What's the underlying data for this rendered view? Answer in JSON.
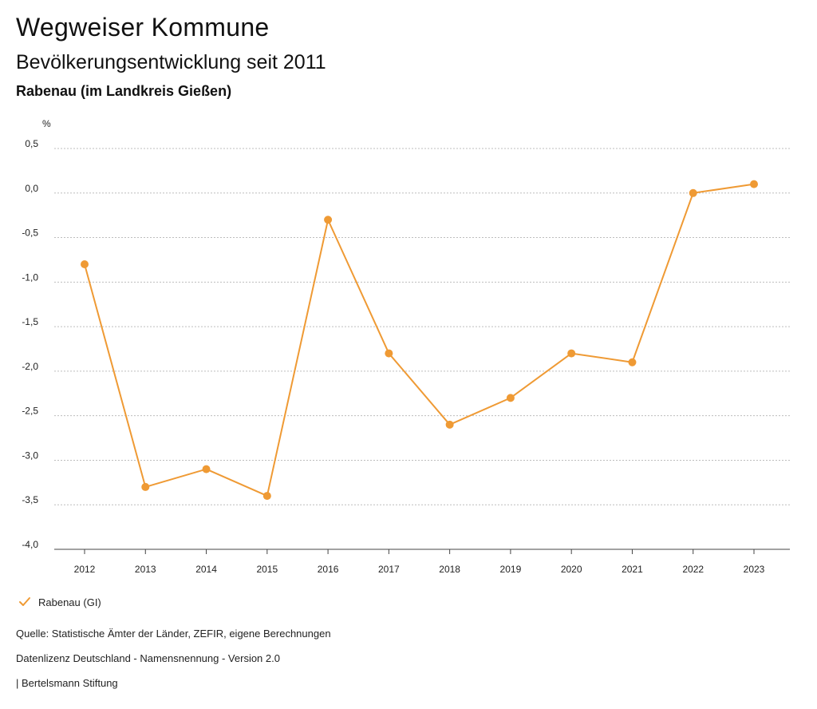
{
  "header": {
    "title": "Wegweiser Kommune",
    "subtitle": "Bevölkerungsentwicklung seit 2011",
    "region": "Rabenau (im Landkreis Gießen)"
  },
  "colors": {
    "series": "#ef9a34",
    "grid": "#bdbdbd",
    "axis": "#222222"
  },
  "chart_data": {
    "type": "line",
    "title": "Bevölkerungsentwicklung seit 2011",
    "ylabel": "%",
    "xlabel": "",
    "ylim": [
      -4.0,
      0.5
    ],
    "yticks": [
      0.5,
      0.0,
      -0.5,
      -1.0,
      -1.5,
      -2.0,
      -2.5,
      -3.0,
      -3.5,
      -4.0
    ],
    "ytick_labels": [
      "0,5",
      "0,0",
      "-0,5",
      "-1,0",
      "-1,5",
      "-2,0",
      "-2,5",
      "-3,0",
      "-3,5",
      "-4,0"
    ],
    "categories": [
      "2012",
      "2013",
      "2014",
      "2015",
      "2016",
      "2017",
      "2018",
      "2019",
      "2020",
      "2021",
      "2022",
      "2023"
    ],
    "series": [
      {
        "name": "Rabenau (GI)",
        "values": [
          -0.8,
          -3.3,
          -3.1,
          -3.4,
          -0.3,
          -1.8,
          -2.6,
          -2.3,
          -1.8,
          -1.9,
          0.0,
          0.1
        ]
      }
    ],
    "grid": true,
    "legend": "bottom-left"
  },
  "legend": {
    "label": "Rabenau (GI)"
  },
  "footer": {
    "source": "Quelle: Statistische Ämter der Länder, ZEFIR, eigene Berechnungen",
    "license": "Datenlizenz Deutschland - Namensnennung - Version 2.0",
    "publisher": "| Bertelsmann Stiftung"
  }
}
